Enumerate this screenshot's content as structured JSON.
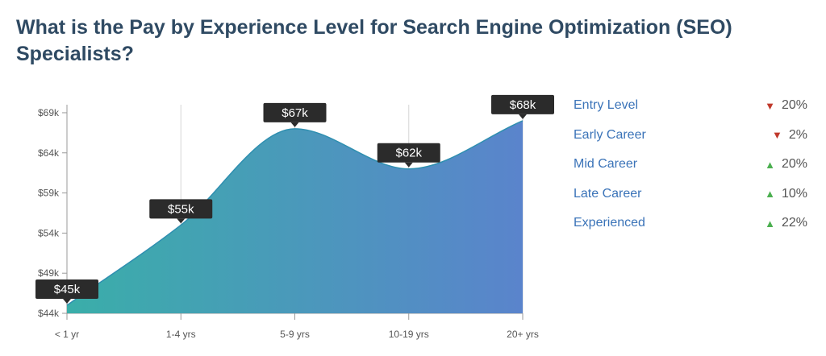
{
  "title": "What is the Pay by Experience Level for Search Engine Optimization (SEO) Specialists?",
  "chart_data": {
    "type": "area",
    "categories": [
      "< 1 yr",
      "1-4 yrs",
      "5-9 yrs",
      "10-19 yrs",
      "20+ yrs"
    ],
    "values": [
      45,
      55,
      67,
      62,
      68
    ],
    "value_labels": [
      "$45k",
      "$55k",
      "$67k",
      "$62k",
      "$68k"
    ],
    "y_ticks": [
      44,
      49,
      54,
      59,
      64,
      69
    ],
    "y_tick_labels": [
      "$44k",
      "$49k",
      "$54k",
      "$59k",
      "$64k",
      "$69k"
    ],
    "ylim": [
      44,
      70
    ],
    "grid": "vertical",
    "fill_gradient": [
      "#3aaea9",
      "#5a84cc"
    ],
    "line_color": "#2f8fb0"
  },
  "legend": [
    {
      "name": "Entry Level",
      "direction": "down",
      "change": "20%"
    },
    {
      "name": "Early Career",
      "direction": "down",
      "change": "2%"
    },
    {
      "name": "Mid Career",
      "direction": "up",
      "change": "20%"
    },
    {
      "name": "Late Career",
      "direction": "up",
      "change": "10%"
    },
    {
      "name": "Experienced",
      "direction": "up",
      "change": "22%"
    }
  ],
  "colors": {
    "title": "#2f4a63",
    "down": "#c0392b",
    "up": "#4caf50",
    "legend_text": "#3a73b8"
  }
}
